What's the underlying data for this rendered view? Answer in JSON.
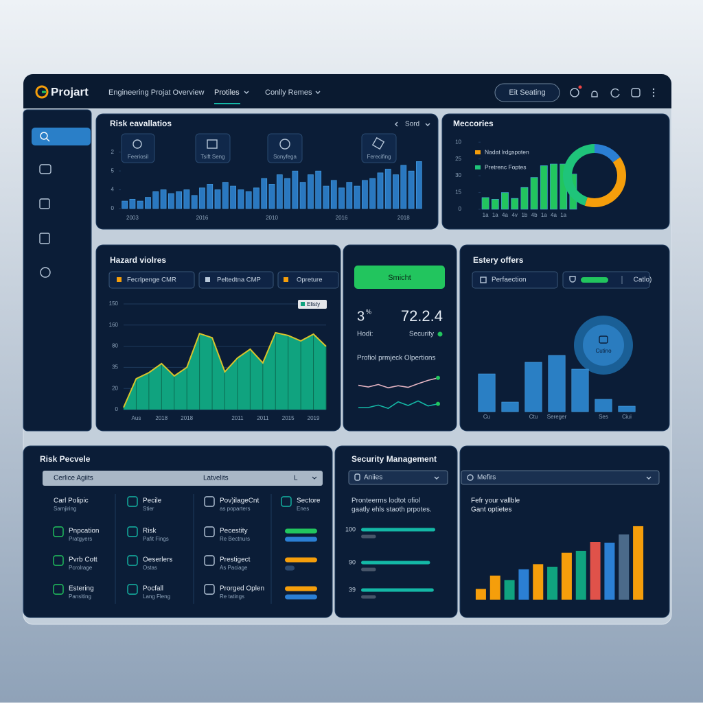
{
  "header": {
    "logo": "Projart",
    "nav": [
      "Engineering Projat Overview",
      "Protiles",
      "Conlly Remes"
    ],
    "search": "Eit Seating"
  },
  "panels": {
    "risk_evaluation": {
      "title": "Risk eavallatios",
      "sort": "Sord",
      "tiles": [
        "Feeriosil",
        "Tsift Seng",
        "Sonyfega",
        "Ferecifing"
      ]
    },
    "memories": {
      "title": "Meccories"
    },
    "hazard": {
      "title": "Hazard violres",
      "filters": [
        "Fecrlpenge CMR",
        "Peltedtna CMP",
        "Opreture"
      ]
    },
    "status": {
      "button": "Smicht",
      "stat1": "3",
      "stat1_unit": "%",
      "stat2": "72.2.4",
      "label1": "Hodi:",
      "label2": "Security",
      "subtitle": "Profiol prmjeck Olpertions"
    },
    "estery": {
      "title": "Estery offers",
      "field": "Perfaection",
      "option": "Catlo)",
      "badge": "Cutino"
    },
    "risk_profile": {
      "title": "Risk Pecvele",
      "header": [
        "Cerlice Agiits",
        "Latvelits",
        "L"
      ],
      "items": [
        [
          [
            "Carl Polipic",
            "Samjiring"
          ],
          [
            "Pecile",
            "Stier"
          ],
          [
            "Pov)ilageCnt",
            "as poparters"
          ],
          [
            "Sectore",
            "Enes"
          ]
        ],
        [
          [
            "Pnpcation",
            "Pratgyers"
          ],
          [
            "Risk",
            "Pafit Fings"
          ],
          [
            "Pecestity",
            "Re Bectnurs"
          ]
        ],
        [
          [
            "Pvrb Cott",
            "Pcrolrage"
          ],
          [
            "Oeserlers",
            "Ostas"
          ],
          [
            "Prestigect",
            "As Paciage"
          ]
        ],
        [
          [
            "Estering",
            "Pansiting"
          ],
          [
            "Pocfall",
            "Lang Fleng"
          ],
          [
            "Prorged Oplen",
            "Re tatings"
          ]
        ]
      ]
    },
    "security": {
      "title": "Security Management",
      "dropdown": "Aniies",
      "text": [
        "Pronteerms lodtot ofiol",
        "gaatly ehls staoth prpotes."
      ]
    },
    "metrics": {
      "dropdown": "Mefirs",
      "text": [
        "Fefr your vallble",
        "Gant optietes"
      ]
    }
  },
  "chart_data": [
    {
      "type": "bar",
      "color": "#2a78c0",
      "ylim": [
        0,
        3.5
      ],
      "yticks": [
        {
          "value": 3,
          "label": "2"
        },
        {
          "value": 2,
          "label": "5"
        },
        {
          "value": 1,
          "label": "4"
        },
        0
      ],
      "categories": [
        null,
        "2003",
        null,
        null,
        null,
        null,
        null,
        null,
        null,
        null,
        "2016",
        null,
        null,
        null,
        null,
        null,
        null,
        null,
        null,
        "2010",
        null,
        null,
        null,
        null,
        null,
        null,
        null,
        null,
        "2016",
        null,
        null,
        null,
        null,
        null,
        null,
        null,
        "2018",
        null,
        null
      ],
      "values": [
        0.4,
        0.5,
        0.4,
        0.6,
        0.9,
        1.0,
        0.8,
        0.9,
        1.0,
        0.7,
        1.1,
        1.3,
        1.0,
        1.4,
        1.2,
        1.0,
        0.9,
        1.1,
        1.6,
        1.3,
        1.8,
        1.6,
        2.0,
        1.4,
        1.8,
        2.0,
        1.2,
        1.5,
        1.1,
        1.4,
        1.2,
        1.5,
        1.6,
        1.9,
        2.1,
        1.8,
        2.3,
        2.0,
        2.5
      ]
    },
    {
      "type": "bar",
      "color": "#22c55e",
      "ylim": [
        0,
        4.5
      ],
      "yticks": [
        {
          "value": 4,
          "label": "10"
        },
        {
          "value": 3,
          "label": "25"
        },
        {
          "value": 2,
          "label": "30"
        },
        {
          "value": 1,
          "label": "15"
        },
        0
      ],
      "categories": [
        "1a",
        "1a",
        "4a",
        "4v",
        "1b",
        "4b",
        "1a",
        "4a",
        "1a",
        null
      ],
      "values": [
        0.7,
        0.6,
        1.0,
        0.65,
        1.3,
        1.9,
        2.6,
        2.7,
        2.7,
        2.1
      ]
    },
    {
      "type": "pie",
      "donut": true,
      "categories": [
        "Nadat lrdgspoten",
        "Pretrenc Foptes",
        null
      ],
      "values": [
        40,
        45,
        15
      ],
      "colors": [
        "#f59e0b",
        "#1fc47a",
        "#2b7fd4"
      ]
    },
    {
      "type": "area",
      "ylim": [
        0,
        5
      ],
      "grid": true,
      "yticks": [
        {
          "value": 5,
          "label": "150"
        },
        {
          "value": 4,
          "label": "160"
        },
        {
          "value": 3,
          "label": "80"
        },
        {
          "value": 2,
          "label": "35"
        },
        {
          "value": 1,
          "label": "20"
        },
        0
      ],
      "categories": [
        null,
        "Aus",
        null,
        "2018",
        null,
        "2018",
        null,
        null,
        null,
        "2011",
        null,
        "2011",
        null,
        "2015",
        null,
        "2019",
        null
      ],
      "series": [
        {
          "name": "Elisty",
          "color": "#10a37f",
          "line_color": "#d9c32b",
          "values": [
            0.1,
            1.46,
            1.75,
            2.18,
            1.59,
            2.0,
            3.6,
            3.4,
            1.79,
            2.44,
            2.86,
            2.21,
            3.64,
            3.51,
            3.25,
            3.57,
            2.99
          ]
        }
      ]
    },
    {
      "type": "line",
      "ylim": [
        0,
        10
      ],
      "series": [
        {
          "color": "#e7b6c4",
          "values": [
            6.4,
            6.0,
            6.6,
            5.8,
            6.3,
            5.9,
            6.8,
            7.6,
            8.2
          ]
        },
        {
          "color": "#14b8a6",
          "values": [
            1.0,
            1.0,
            1.6,
            0.8,
            2.4,
            1.5,
            2.6,
            1.4,
            1.9
          ]
        }
      ]
    },
    {
      "type": "bar",
      "color": "#2a7fc4",
      "ylim": [
        0,
        100
      ],
      "categories": [
        "Cu",
        null,
        "Ctu",
        "Sereger",
        null,
        "Ses",
        "Ciui"
      ],
      "values": [
        55,
        14,
        72,
        82,
        62,
        18,
        8
      ]
    },
    {
      "type": "progress",
      "xlim": [
        0,
        100
      ],
      "series": [
        {
          "values": [
            100,
            100,
            100
          ],
          "colors": [
            "#22c55e",
            "#f59e0b",
            "#f59e0b"
          ]
        },
        {
          "values": [
            100,
            30,
            100
          ],
          "colors": [
            "#2b7fd4",
            "#2c4a70",
            "#2b7fd4"
          ]
        }
      ]
    },
    {
      "type": "hbar",
      "xlim": [
        0,
        100
      ],
      "categories": [
        "100",
        "90",
        "39"
      ],
      "series": [
        {
          "color": "#14b8a6",
          "values": [
            100,
            93,
            98
          ]
        },
        {
          "color": "#475569",
          "values": [
            20,
            20,
            20
          ]
        }
      ]
    },
    {
      "type": "bar",
      "ylim": [
        0,
        130
      ],
      "values": [
        17,
        38,
        31,
        48,
        56,
        52,
        74,
        77,
        91,
        90,
        103,
        116
      ],
      "colors": [
        "#f59e0b",
        "#f59e0b",
        "#10a37f",
        "#2b7fd4",
        "#f59e0b",
        "#10a37f",
        "#f59e0b",
        "#10a37f",
        "#e0524a",
        "#2b7fd4",
        "#4b6a8a",
        "#f59e0b"
      ]
    }
  ]
}
